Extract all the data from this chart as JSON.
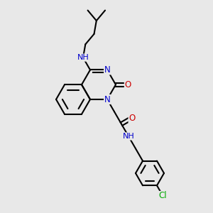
{
  "bg_color": "#e8e8e8",
  "atom_colors": {
    "N": "#0000cc",
    "O": "#cc0000",
    "Cl": "#00aa00",
    "H_label": "#557799"
  },
  "bond_color": "#000000",
  "bond_width": 1.5,
  "figsize": [
    3.0,
    3.0
  ],
  "dpi": 100
}
